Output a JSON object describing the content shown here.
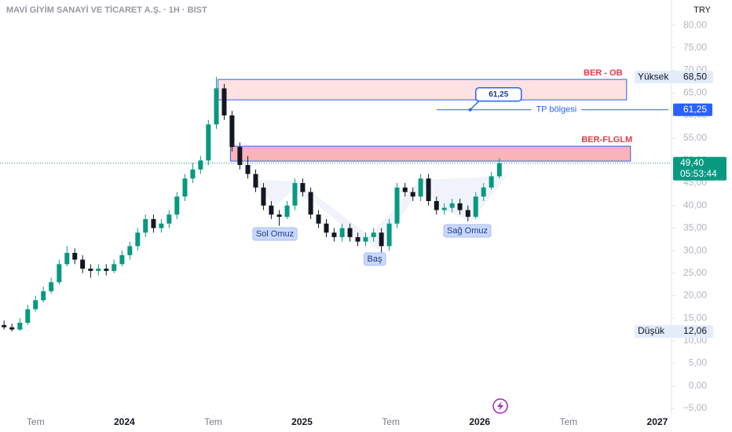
{
  "chart_data": {
    "type": "candlestick",
    "title": "MAVİ GİYİM SANAYİ VE TİCARET A.Ş. · 1H · BIST",
    "currency": "TRY",
    "up_color": "#089981",
    "down_color": "#131722",
    "grid": false,
    "xlim": [
      2023.3,
      2027.08
    ],
    "xticks": [
      {
        "value": 2023.5,
        "label": "Tem"
      },
      2024,
      {
        "value": 2024.5,
        "label": "Tem"
      },
      2025,
      {
        "value": 2025.5,
        "label": "Tem"
      },
      2026,
      {
        "value": 2026.5,
        "label": "Tem"
      },
      2027
    ],
    "ylim": [
      -6.4,
      85.6
    ],
    "yticks": [
      {
        "value": 80,
        "label": "80,00"
      },
      {
        "value": 75,
        "label": "75,00"
      },
      {
        "value": 70,
        "label": "70,00"
      },
      {
        "value": 65,
        "label": "65,00"
      },
      {
        "value": 60,
        "label": "60,00"
      },
      {
        "value": 55,
        "label": "55,00"
      },
      {
        "value": 50,
        "label": "50,00"
      },
      {
        "value": 45,
        "label": "45,00"
      },
      {
        "value": 40,
        "label": "40,00"
      },
      {
        "value": 35,
        "label": "35,00"
      },
      {
        "value": 30,
        "label": "30,00"
      },
      {
        "value": 25,
        "label": "25,00"
      },
      {
        "value": 20,
        "label": "20,00"
      },
      {
        "value": 15,
        "label": "15,00"
      },
      {
        "value": 10,
        "label": "10,00"
      },
      {
        "value": 5,
        "label": "5,00"
      },
      {
        "value": 0,
        "label": "0,00"
      },
      {
        "value": -5,
        "label": "−5,00"
      }
    ],
    "x": [
      2023.323,
      2023.367,
      2023.412,
      2023.456,
      2023.5,
      2023.544,
      2023.588,
      2023.633,
      2023.677,
      2023.721,
      2023.765,
      2023.81,
      2023.854,
      2023.898,
      2023.942,
      2023.987,
      2024.031,
      2024.075,
      2024.119,
      2024.164,
      2024.208,
      2024.252,
      2024.296,
      2024.341,
      2024.385,
      2024.429,
      2024.473,
      2024.518,
      2024.562,
      2024.606,
      2024.65,
      2024.695,
      2024.739,
      2024.783,
      2024.827,
      2024.872,
      2024.916,
      2024.96,
      2025.004,
      2025.049,
      2025.093,
      2025.137,
      2025.181,
      2025.226,
      2025.27,
      2025.314,
      2025.358,
      2025.403,
      2025.447,
      2025.491,
      2025.535,
      2025.58,
      2025.624,
      2025.668,
      2025.712,
      2025.757,
      2025.801,
      2025.845,
      2025.889,
      2025.934,
      2025.978,
      2026.022,
      2026.066,
      2026.111
    ],
    "open": [
      13.5,
      13,
      12.5,
      14,
      17,
      19,
      21,
      23,
      27,
      29.5,
      28,
      26,
      25.5,
      26,
      25.5,
      27,
      29,
      31,
      34,
      37,
      35,
      36,
      38,
      42,
      46,
      48,
      50,
      58,
      66,
      60,
      53,
      49,
      47,
      44,
      40,
      38,
      37.5,
      40,
      45,
      43,
      38,
      36,
      34,
      33,
      35,
      33,
      32,
      33,
      34,
      31,
      36,
      44,
      43,
      42,
      46,
      41,
      39,
      39.5,
      40.5,
      39,
      37.5,
      42,
      44,
      46.5
    ],
    "high": [
      14.5,
      13.8,
      15,
      18,
      20,
      22,
      24,
      28,
      31,
      30.5,
      29,
      27,
      27,
      27,
      28,
      30,
      32,
      35,
      38,
      38,
      37,
      39,
      43,
      47,
      49.5,
      51,
      59,
      68.5,
      67,
      61,
      54,
      51,
      48,
      45,
      41,
      39,
      41,
      46,
      46,
      44,
      39,
      37,
      35,
      36,
      36,
      34,
      34,
      35,
      35,
      37,
      45,
      45,
      44,
      47,
      47,
      42,
      40.5,
      41.5,
      41.5,
      40,
      43,
      45,
      47.5,
      50.5
    ],
    "low": [
      12.5,
      12.06,
      12.2,
      13.5,
      16.5,
      18.5,
      20.5,
      22.5,
      26.5,
      27,
      25,
      24,
      24.5,
      24.5,
      25,
      26.5,
      28,
      30,
      33,
      34,
      34,
      35,
      37,
      41,
      45,
      47,
      49,
      57,
      59,
      52,
      48,
      46,
      43,
      39,
      37,
      35.5,
      37,
      39,
      42,
      37,
      35,
      33,
      32,
      32,
      32,
      31,
      31,
      32,
      29.5,
      30,
      35,
      42,
      41,
      41,
      40,
      38,
      38,
      38.5,
      38,
      36.5,
      37,
      41,
      43.5,
      46
    ],
    "close": [
      13,
      12.5,
      14,
      17,
      19,
      21,
      23,
      27,
      29.5,
      28,
      26,
      25.5,
      26,
      25.5,
      27,
      29,
      31,
      34,
      37,
      35,
      36,
      38,
      42,
      46,
      48,
      50,
      58,
      66,
      60,
      53,
      49,
      47,
      44,
      40,
      38,
      37.5,
      40,
      45,
      43,
      38,
      36,
      34,
      33,
      35,
      33,
      32,
      33,
      34,
      31,
      36,
      44,
      43,
      42,
      46,
      41,
      39,
      39.5,
      40.5,
      39,
      37.5,
      42,
      44,
      46.5,
      49.4
    ],
    "zones": [
      {
        "label": "BER - OB",
        "top": 67.98,
        "bottom": 63.45,
        "x_start": 2024.527,
        "x_end": 2026.827,
        "color": "rgba(242,54,69,0.15)"
      },
      {
        "label": "BER-FLGLM",
        "top": 53.17,
        "bottom": 49.86,
        "x_start": 2024.597,
        "x_end": 2026.849,
        "color": "rgba(242,54,69,0.38)"
      }
    ],
    "tp": {
      "name": "TP bölgesi",
      "value": 61.25,
      "label": "61,25",
      "x_start": 2025.757,
      "x_end": 2027.062,
      "color": "#2962ff"
    },
    "high_label": {
      "name": "Yüksek",
      "value": 68.5,
      "label": "68,50"
    },
    "low_label": {
      "name": "Düşük",
      "value": 12.06,
      "label": "12,06"
    },
    "last_price": {
      "value": 49.4,
      "label": "49,40",
      "countdown": "05:53:44"
    },
    "annotations": [
      "Sol Omuz",
      "Baş",
      "Sağ Omuz"
    ]
  }
}
